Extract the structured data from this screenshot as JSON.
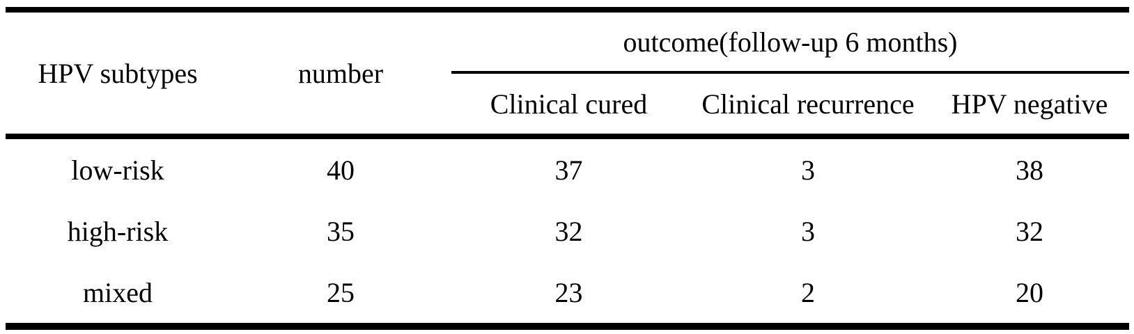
{
  "table": {
    "header": {
      "subtypes_label": "HPV subtypes",
      "number_label": "number",
      "outcome_group_label": "outcome(follow-up 6 months)",
      "sub_columns": [
        "Clinical cured",
        "Clinical recurrence",
        "HPV negative"
      ]
    },
    "rows": [
      [
        "low-risk",
        "40",
        "37",
        "3",
        "38"
      ],
      [
        "high-risk",
        "35",
        "32",
        "3",
        "32"
      ],
      [
        "mixed",
        "25",
        "23",
        "2",
        "20"
      ]
    ]
  },
  "colors": {
    "background": "#ffffff",
    "text": "#000000",
    "rule": "#000000"
  }
}
